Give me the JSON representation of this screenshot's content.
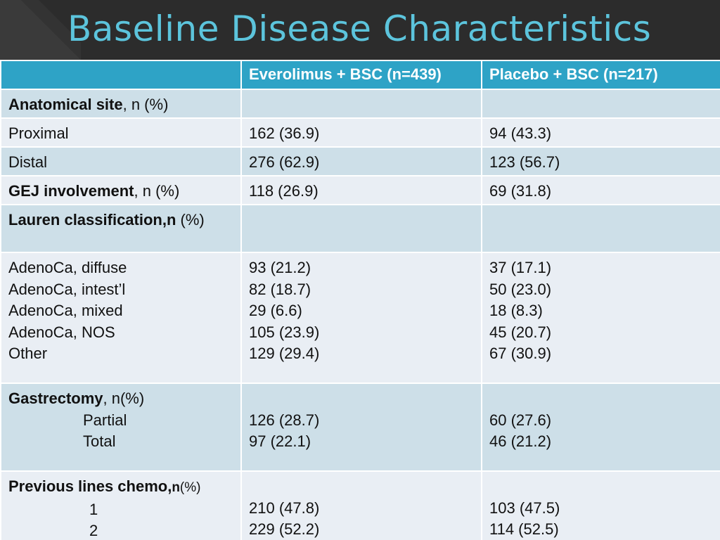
{
  "title": "Baseline Disease Characteristics",
  "header": {
    "col1": "",
    "col2": "Everolimus + BSC (n=439)",
    "col3": "Placebo + BSC (n=217)"
  },
  "rows": {
    "anatomical": {
      "label": "Anatomical site",
      "suffix": ", n (%)",
      "v1": "",
      "v2": ""
    },
    "proximal": {
      "label": "Proximal",
      "v1": "162 (36.9)",
      "v2": "94 (43.3)"
    },
    "distal": {
      "label": "Distal",
      "v1": "276 (62.9)",
      "v2": "123 (56.7)"
    },
    "gej": {
      "label": "GEJ involvement",
      "suffix": ", n (%)",
      "v1": "118 (26.9)",
      "v2": "69 (31.8)"
    },
    "lauren": {
      "label": "Lauren classification,n",
      "suffix": " (%)"
    },
    "lauren_items": [
      {
        "label": "AdenoCa, diffuse",
        "v1": "93 (21.2)",
        "v2": "37 (17.1)"
      },
      {
        "label": "AdenoCa, intest’l",
        "v1": "82 (18.7)",
        "v2": "50 (23.0)"
      },
      {
        "label": "AdenoCa, mixed",
        "v1": "29 (6.6)",
        "v2": "18 (8.3)"
      },
      {
        "label": "AdenoCa, NOS",
        "v1": "105 (23.9)",
        "v2": "45 (20.7)"
      },
      {
        "label": "Other",
        "v1": "129 (29.4)",
        "v2": "67 (30.9)"
      }
    ],
    "gastrectomy": {
      "label": "Gastrectomy",
      "suffix": ", n(%)",
      "items": [
        {
          "label": "Partial",
          "v1": "126 (28.7)",
          "v2": "60 (27.6)"
        },
        {
          "label": "Total",
          "v1": "97 (22.1)",
          "v2": "46 (21.2)"
        }
      ]
    },
    "chemo": {
      "label": "Previous lines chemo,",
      "label_n": "n",
      "suffix": "(%)",
      "items": [
        {
          "label": "1",
          "v1": "210 (47.8)",
          "v2": "103 (47.5)"
        },
        {
          "label": "2",
          "v1": "229 (52.2)",
          "v2": "114 (52.5)"
        }
      ]
    }
  },
  "colors": {
    "title": "#5cc4dc",
    "header_bg": "#2ea3c6",
    "row_dark": "#cddfe8",
    "row_light": "#e9eef4"
  }
}
